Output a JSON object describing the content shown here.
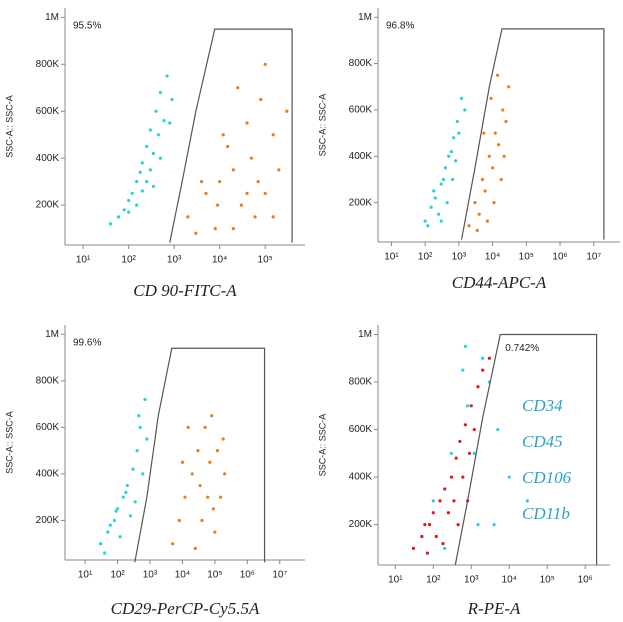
{
  "chart_data": [
    {
      "type": "scatter",
      "x_label": "CD 90-FITC-A",
      "y_label": "SSC-A:: SSC-A",
      "annotation": "95.5%",
      "xscale": "log",
      "xlim": [
        4,
        750000
      ],
      "ylim": [
        30000,
        1040000
      ],
      "xticks": [
        {
          "value": 10,
          "label": "10¹"
        },
        {
          "value": 100,
          "label": "10²"
        },
        {
          "value": 1000,
          "label": "10³"
        },
        {
          "value": 10000,
          "label": "10⁴"
        },
        {
          "value": 100000,
          "label": "10⁵"
        }
      ],
      "yticks": [
        {
          "value": 200000,
          "label": "200K"
        },
        {
          "value": 400000,
          "label": "400K"
        },
        {
          "value": 600000,
          "label": "600K"
        },
        {
          "value": 800000,
          "label": "800K"
        },
        {
          "value": 1000000,
          "label": "1M"
        }
      ],
      "series": [
        {
          "color": "#22d3dd",
          "x": [
            60,
            100,
            150,
            200,
            250,
            300,
            400,
            500,
            700,
            80,
            120,
            180,
            350,
            450,
            600,
            250,
            150,
            300,
            900,
            40,
            200,
            500,
            800,
            100,
            350
          ],
          "y": [
            150000,
            220000,
            300000,
            380000,
            450000,
            520000,
            600000,
            680000,
            750000,
            180000,
            250000,
            340000,
            420000,
            500000,
            560000,
            300000,
            200000,
            350000,
            650000,
            120000,
            260000,
            400000,
            550000,
            170000,
            280000
          ]
        },
        {
          "color": "#e87d1e",
          "x": [
            2000,
            5000,
            10000,
            20000,
            50000,
            100000,
            30000,
            8000,
            3000,
            15000,
            40000,
            80000,
            150000,
            200000,
            60000,
            25000,
            12000,
            100000,
            4000,
            300000,
            20000,
            70000,
            9000,
            150000,
            40000
          ],
          "y": [
            150000,
            250000,
            300000,
            350000,
            400000,
            250000,
            200000,
            100000,
            80000,
            450000,
            550000,
            650000,
            500000,
            350000,
            150000,
            700000,
            500000,
            800000,
            300000,
            600000,
            100000,
            300000,
            200000,
            150000,
            250000
          ]
        }
      ],
      "gate": {
        "x": [
          800,
          1500,
          3000,
          7800,
          390000,
          390000
        ],
        "y": [
          40000,
          300000,
          600000,
          950000,
          950000,
          40000
        ]
      }
    },
    {
      "type": "scatter",
      "x_label": "CD44-APC-A",
      "y_label": "SSC-A:: SSC-A",
      "annotation": "96.8%",
      "xscale": "log",
      "xlim": [
        4,
        60000000
      ],
      "ylim": [
        30000,
        1040000
      ],
      "xticks": [
        {
          "value": 10,
          "label": "10¹"
        },
        {
          "value": 100,
          "label": "10²"
        },
        {
          "value": 1000,
          "label": "10³"
        },
        {
          "value": 10000,
          "label": "10⁴"
        },
        {
          "value": 100000,
          "label": "10⁵"
        },
        {
          "value": 1000000,
          "label": "10⁶"
        },
        {
          "value": 10000000,
          "label": "10⁷"
        }
      ],
      "yticks": [
        {
          "value": 200000,
          "label": "200K"
        },
        {
          "value": 400000,
          "label": "400K"
        },
        {
          "value": 600000,
          "label": "600K"
        },
        {
          "value": 800000,
          "label": "800K"
        },
        {
          "value": 1000000,
          "label": "1M"
        }
      ],
      "series": [
        {
          "color": "#22d3dd",
          "x": [
            100,
            150,
            200,
            300,
            400,
            500,
            700,
            900,
            1200,
            250,
            350,
            600,
            800,
            1500,
            180,
            450,
            1000,
            300,
            650,
            120
          ],
          "y": [
            120000,
            180000,
            220000,
            280000,
            350000,
            400000,
            480000,
            550000,
            650000,
            150000,
            300000,
            420000,
            380000,
            600000,
            250000,
            200000,
            500000,
            120000,
            300000,
            100000
          ]
        },
        {
          "color": "#e87d1e",
          "x": [
            2000,
            3000,
            5000,
            8000,
            12000,
            20000,
            30000,
            4000,
            6000,
            10000,
            15000,
            25000,
            7000,
            9000,
            18000,
            3500,
            11000,
            14000,
            5500,
            22000
          ],
          "y": [
            100000,
            200000,
            300000,
            400000,
            500000,
            600000,
            700000,
            150000,
            250000,
            350000,
            450000,
            550000,
            120000,
            650000,
            300000,
            80000,
            200000,
            750000,
            500000,
            400000
          ]
        }
      ],
      "gate": {
        "x": [
          1200,
          3000,
          8000,
          19000,
          20000000,
          20000000
        ],
        "y": [
          40000,
          350000,
          700000,
          950000,
          950000,
          40000
        ]
      }
    },
    {
      "type": "scatter",
      "x_label": "CD29-PerCP-Cy5.5A",
      "y_label": "SSC-A:: SSC-A",
      "annotation": "99.6%",
      "xscale": "log",
      "xlim": [
        2.4,
        60000000
      ],
      "ylim": [
        30000,
        1040000
      ],
      "xticks": [
        {
          "value": 10,
          "label": "10¹"
        },
        {
          "value": 100,
          "label": "10²"
        },
        {
          "value": 1000,
          "label": "10³"
        },
        {
          "value": 10000,
          "label": "10⁴"
        },
        {
          "value": 100000,
          "label": "10⁵"
        },
        {
          "value": 1000000,
          "label": "10⁶"
        },
        {
          "value": 10000000,
          "label": "10⁷"
        }
      ],
      "yticks": [
        {
          "value": 200000,
          "label": "200K"
        },
        {
          "value": 400000,
          "label": "400K"
        },
        {
          "value": 600000,
          "label": "600K"
        },
        {
          "value": 800000,
          "label": "800K"
        },
        {
          "value": 1000000,
          "label": "1M"
        }
      ],
      "series": [
        {
          "color": "#22d3dd",
          "x": [
            30,
            50,
            80,
            100,
            150,
            200,
            300,
            400,
            500,
            700,
            60,
            120,
            250,
            350,
            600,
            40,
            180,
            450,
            90,
            800
          ],
          "y": [
            100000,
            150000,
            200000,
            250000,
            300000,
            350000,
            420000,
            500000,
            600000,
            720000,
            180000,
            130000,
            220000,
            280000,
            400000,
            60000,
            320000,
            650000,
            240000,
            550000
          ]
        },
        {
          "color": "#e87d1e",
          "x": [
            5000,
            8000,
            12000,
            20000,
            30000,
            50000,
            80000,
            120000,
            200000,
            15000,
            40000,
            60000,
            100000,
            150000,
            25000,
            70000,
            10000,
            90000,
            35000,
            180000
          ],
          "y": [
            100000,
            200000,
            300000,
            400000,
            500000,
            600000,
            650000,
            500000,
            400000,
            600000,
            200000,
            300000,
            150000,
            300000,
            80000,
            450000,
            450000,
            250000,
            350000,
            550000
          ]
        }
      ],
      "gate": {
        "x": [
          340,
          800,
          1800,
          4700,
          3400000,
          3400000
        ],
        "y": [
          20000,
          300000,
          650000,
          940000,
          940000,
          20000
        ]
      }
    },
    {
      "type": "scatter",
      "x_label": "R-PE-A",
      "y_label": "SSC-A:: SSC-A",
      "annotation": "0.742%",
      "markers": [
        "CD34",
        "CD45",
        "CD106",
        "CD11b"
      ],
      "xscale": "log",
      "xlim": [
        3.5,
        4500000
      ],
      "ylim": [
        30000,
        1040000
      ],
      "xticks": [
        {
          "value": 10,
          "label": "10¹"
        },
        {
          "value": 100,
          "label": "10²"
        },
        {
          "value": 1000,
          "label": "10³"
        },
        {
          "value": 10000,
          "label": "10⁴"
        },
        {
          "value": 100000,
          "label": "10⁵"
        },
        {
          "value": 1000000,
          "label": "10⁶"
        }
      ],
      "yticks": [
        {
          "value": 200000,
          "label": "200K"
        },
        {
          "value": 400000,
          "label": "400K"
        },
        {
          "value": 600000,
          "label": "600K"
        },
        {
          "value": 800000,
          "label": "800K"
        },
        {
          "value": 1000000,
          "label": "1M"
        }
      ],
      "series": [
        {
          "color": "#22d3dd",
          "x": [
            50,
            100,
            300,
            800,
            2000,
            5000,
            10000,
            30000,
            1500,
            3000,
            600,
            200,
            4000,
            700,
            1200
          ],
          "y": [
            150000,
            300000,
            500000,
            700000,
            900000,
            600000,
            400000,
            300000,
            200000,
            800000,
            850000,
            100000,
            200000,
            950000,
            500000
          ]
        },
        {
          "color": "#e0191c",
          "x": [
            30,
            50,
            80,
            100,
            150,
            200,
            300,
            400,
            500,
            700,
            1000,
            1500,
            2000,
            3000,
            60,
            120,
            250,
            350,
            600,
            900,
            180,
            450,
            800,
            1200,
            70
          ],
          "y": [
            100000,
            150000,
            200000,
            250000,
            300000,
            350000,
            400000,
            480000,
            550000,
            620000,
            700000,
            780000,
            850000,
            900000,
            200000,
            150000,
            250000,
            300000,
            400000,
            500000,
            120000,
            200000,
            300000,
            600000,
            80000
          ]
        }
      ],
      "gate": {
        "x": [
          380,
          800,
          2000,
          5800,
          2000000,
          2000000
        ],
        "y": [
          30000,
          300000,
          650000,
          1000000,
          1000000,
          30000
        ]
      }
    }
  ]
}
